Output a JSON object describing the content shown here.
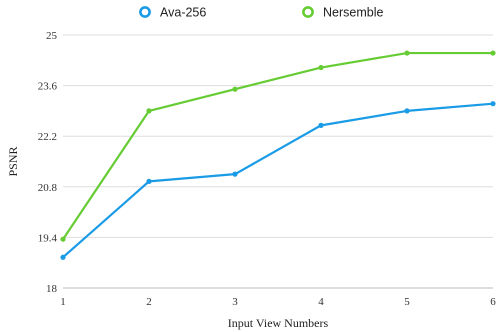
{
  "chart_data": {
    "type": "line",
    "x": [
      1,
      2,
      3,
      4,
      5,
      6
    ],
    "xlabel": "Input View Numbers",
    "ylabel": "PSNR",
    "xlim": [
      1,
      6
    ],
    "ylim": [
      18,
      25
    ],
    "yticks": [
      18,
      19.4,
      20.8,
      22.2,
      23.6,
      25
    ],
    "grid": "horizontal",
    "legend_position": "top",
    "series": [
      {
        "name": "Ava-256",
        "color": "#1a9be6",
        "values": [
          18.85,
          20.95,
          21.15,
          22.5,
          22.9,
          23.1
        ]
      },
      {
        "name": "Nersemble",
        "color": "#66cc33",
        "values": [
          19.35,
          22.9,
          23.5,
          24.1,
          24.5,
          24.5
        ]
      }
    ]
  }
}
